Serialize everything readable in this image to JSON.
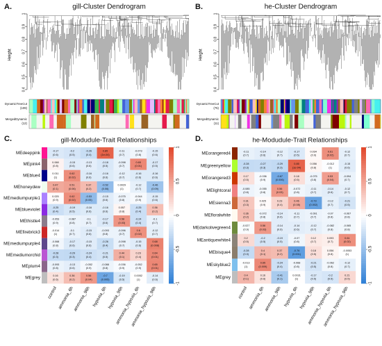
{
  "chart_data": [
    {
      "type": "dendrogram",
      "label": "A.",
      "title": "gill-Cluster Dendrogram",
      "ylabel": "Height",
      "ylim": [
        0.35,
        1.0
      ],
      "yticks": [
        0.4,
        0.5,
        0.6,
        0.7,
        0.8,
        0.9,
        1.0
      ],
      "track_labels": [
        [
          "DynamicTreeCut",
          "(109)"
        ],
        [
          "MergedDynamic",
          "(12)"
        ]
      ]
    },
    {
      "type": "dendrogram",
      "label": "B.",
      "title": "he-Cluster Dendrogram",
      "ylabel": "Height",
      "ylim": [
        0.35,
        1.0
      ],
      "yticks": [
        0.4,
        0.5,
        0.6,
        0.7,
        0.8,
        0.9,
        1.0
      ],
      "track_labels": [
        [
          "DynamicTreeCut",
          "(75)"
        ],
        [
          "MergedDynamic",
          "(11)"
        ]
      ]
    },
    {
      "type": "heatmap",
      "label": "C.",
      "title": "gill-Modudule-Trait Relationships",
      "rows": [
        "MEdeeppink",
        "MEpink4",
        "MEblue4",
        "MEhoneydew",
        "MEmediumpurple1",
        "MEblueviolet",
        "MEthistle4",
        "MEfirebrick3",
        "MEmediumpurple4",
        "MEmediumorchid",
        "MEplum4",
        "MEgrey"
      ],
      "row_colors": [
        "#ff1493",
        "#8b636c",
        "#00008b",
        "#f0fff0",
        "#ab82ff",
        "#8a2be2",
        "#8b7b8b",
        "#cd2626",
        "#5d478b",
        "#ba55d3",
        "#8b668b",
        "#bebebe"
      ],
      "columns": [
        "control",
        "ammonia_6h",
        "ammonia_96h",
        "hypoxia_6h",
        "hypoxia_96h",
        "ammonia_hypoxia_6h",
        "ammonia_hypoxia_96h"
      ],
      "values": [
        [
          -0.17,
          -0.2,
          -0.26,
          0.85,
          -0.11,
          -0.073,
          -0.15
        ],
        [
          0.068,
          -0.15,
          -0.13,
          -0.18,
          -0.098,
          0.65,
          -0.17
        ],
        [
          0.011,
          0.62,
          -0.16,
          -0.16,
          -0.12,
          -0.16,
          -0.16
        ],
        [
          0.47,
          0.51,
          0.37,
          -0.52,
          0.0029,
          -0.12,
          -0.46
        ],
        [
          0.025,
          0.62,
          -0.53,
          -0.15,
          -0.075,
          -0.044,
          -0.15
        ],
        [
          -0.25,
          -0.19,
          -0.16,
          -0.16,
          0.057,
          -0.25,
          0.36
        ],
        [
          -0.053,
          -0.087,
          -0.1,
          -0.17,
          0.58,
          -0.24,
          -0.1
        ],
        [
          -0.014,
          -0.1,
          -0.15,
          -0.093,
          -0.096,
          0.6,
          -0.12
        ],
        [
          -0.068,
          -0.17,
          -0.15,
          -0.26,
          -0.098,
          -0.15,
          0.68
        ],
        [
          -0.28,
          -0.29,
          -0.24,
          -0.21,
          0.44,
          0.23,
          0.64
        ],
        [
          -0.093,
          -0.13,
          -0.052,
          -0.088,
          -0.036,
          -0.052,
          0.65
        ],
        [
          0.16,
          0.36,
          0.56,
          -0.7,
          -0.19,
          0.0052,
          -0.14
        ]
      ],
      "p_labels": [
        [
          "(0.6)",
          "(0.5)",
          "(0.4)",
          "(1e-04)",
          "(0.7)",
          "(0.8)",
          "(0.6)"
        ],
        [
          "(0.8)",
          "(0.6)",
          "(0.6)",
          "(0.5)",
          "(0.7)",
          "(0.01)",
          "(0.5)"
        ],
        [
          "(1)",
          "(0.02)",
          "(0.6)",
          "(0.6)",
          "(0.7)",
          "(0.6)",
          "(0.6)"
        ],
        [
          "(0.1)",
          "(0.06)",
          "(0.2)",
          "(0.06)",
          "(1)",
          "(0.7)",
          "(0.09)"
        ],
        [
          "(0.9)",
          "(0.02)",
          "(0.05)",
          "(0.6)",
          "(0.8)",
          "(0.9)",
          "(0.6)"
        ],
        [
          "(0.4)",
          "(0.5)",
          "(0.6)",
          "(0.6)",
          "(0.8)",
          "(0.4)",
          "(0.2)"
        ],
        [
          "(0.9)",
          "(0.8)",
          "(0.7)",
          "(0.6)",
          "(0.03)",
          "(0.4)",
          "(0.7)"
        ],
        [
          "(1)",
          "(0.7)",
          "(0.6)",
          "(0.8)",
          "(0.7)",
          "(0.02)",
          "(0.7)"
        ],
        [
          "(0.8)",
          "(0.6)",
          "(0.6)",
          "(0.4)",
          "(0.7)",
          "(0.6)",
          "(0.008)"
        ],
        [
          "(0.3)",
          "(0.3)",
          "(0.4)",
          "(0.5)",
          "(0.1)",
          "(0.4)",
          "(0.01)"
        ],
        [
          "(0.8)",
          "(0.6)",
          "(0.9)",
          "(0.8)",
          "(0.9)",
          "(0.9)",
          "(0.01)"
        ],
        [
          "(0.6)",
          "(0.2)",
          "(0.04)",
          "(0.005)",
          "(0.5)",
          "(1)",
          "(0.6)"
        ]
      ],
      "colorscale": [
        "#2d7fd6",
        "#ffffff",
        "#e2472a"
      ],
      "clim": [
        -1,
        1
      ],
      "cticks": [
        1,
        0.5,
        0,
        -0.5,
        -1
      ]
    },
    {
      "type": "heatmap",
      "label": "D.",
      "title": "he-Modudule-Trait Relationships",
      "rows": [
        "MEorangered4",
        "MEgreenyellow",
        "MEorangered3",
        "MElightcoral",
        "MEsienna3",
        "MEfloralwhite",
        "MEdarkolivegreen4",
        "MEantiquewhite4",
        "MEbisque4",
        "MEskyblue2",
        "MEgrey"
      ],
      "row_colors": [
        "#8b2500",
        "#adff2f",
        "#cd3700",
        "#f08080",
        "#cd6839",
        "#fffaf0",
        "#6e8b3d",
        "#8b8378",
        "#8b7d6b",
        "#7ec0ee",
        "#bebebe"
      ],
      "columns": [
        "control",
        "ammonia_6h",
        "ammonia_96h",
        "hypoxia_6h",
        "hypoxia_96h",
        "ammonia_hypoxia_6h",
        "ammonia_hypoxia_96h"
      ],
      "values": [
        [
          -0.11,
          -0.14,
          -0.12,
          -0.17,
          0.034,
          0.61,
          -0.12
        ],
        [
          -0.28,
          -0.27,
          -0.29,
          0.85,
          0.056,
          -0.012,
          -0.15
        ],
        [
          0.17,
          -0.036,
          -0.67,
          0.18,
          -0.075,
          0.53,
          -0.094
        ],
        [
          -0.085,
          -0.055,
          0.56,
          -0.072,
          -0.11,
          -0.14,
          -0.12
        ],
        [
          0.31,
          0.025,
          0.23,
          0.46,
          -0.73,
          -0.12,
          -0.21
        ],
        [
          0.36,
          -0.072,
          -0.14,
          -0.11,
          -0.091,
          -0.07,
          -0.067
        ],
        [
          -0.027,
          0.56,
          -0.14,
          -0.14,
          -0.12,
          -0.082,
          -0.065
        ],
        [
          0.2,
          -0.2,
          -0.19,
          -0.07,
          0.12,
          0.093,
          0.61
        ],
        [
          -0.28,
          0.4,
          0.37,
          -0.76,
          0.18,
          0.056,
          -0.0053
        ],
        [
          -0.013,
          0.65,
          -0.24,
          -0.068,
          -0.21,
          -0.062,
          -0.12
        ],
        [
          0.4,
          0.16,
          -0.41,
          0.0031,
          -0.17,
          -0.2,
          0.21
        ]
      ],
      "p_labels": [
        [
          "(0.7)",
          "(0.6)",
          "(0.7)",
          "(0.5)",
          "(0.9)",
          "(0.02)",
          "(0.7)"
        ],
        [
          "(0.3)",
          "(0.3)",
          "(0.3)",
          "(1e-04)",
          "(0.8)",
          "(1)",
          "(0.6)"
        ],
        [
          "(0.5)",
          "(0.9)",
          "(0.006)",
          "(0.5)",
          "(0.8)",
          "(0.04)",
          "(0.7)"
        ],
        [
          "(0.8)",
          "(0.8)",
          "(0.03)",
          "(0.8)",
          "(0.7)",
          "(0.6)",
          "(0.7)"
        ],
        [
          "(0.3)",
          "(0.9)",
          "(0.4)",
          "(0.08)",
          "(0.002)",
          "(0.7)",
          "(0.5)"
        ],
        [
          "(0.2)",
          "(0.8)",
          "(0.6)",
          "(0.7)",
          "(0.7)",
          "(0.8)",
          "(0.8)"
        ],
        [
          "(0.9)",
          "(0.03)",
          "(0.6)",
          "(0.6)",
          "(0.7)",
          "(0.8)",
          "(0.8)"
        ],
        [
          "(0.5)",
          "(0.5)",
          "(0.5)",
          "(0.8)",
          "(0.7)",
          "(0.7)",
          "(0.02)"
        ],
        [
          "(0.3)",
          "(0.1)",
          "(0.2)",
          "(0.001)",
          "(0.5)",
          "(0.8)",
          "(1)"
        ],
        [
          "(1)",
          "(0.009)",
          "(0.4)",
          "(0.8)",
          "(0.5)",
          "(0.8)",
          "(0.7)"
        ],
        [
          "(0.1)",
          "(0.6)",
          "(0.1)",
          "(1)",
          "(0.5)",
          "(0.5)",
          "(0.5)"
        ]
      ],
      "colorscale": [
        "#2d7fd6",
        "#ffffff",
        "#e2472a"
      ],
      "clim": [
        -1,
        1
      ],
      "cticks": [
        1,
        0.5,
        0,
        -0.5,
        -1
      ]
    }
  ]
}
